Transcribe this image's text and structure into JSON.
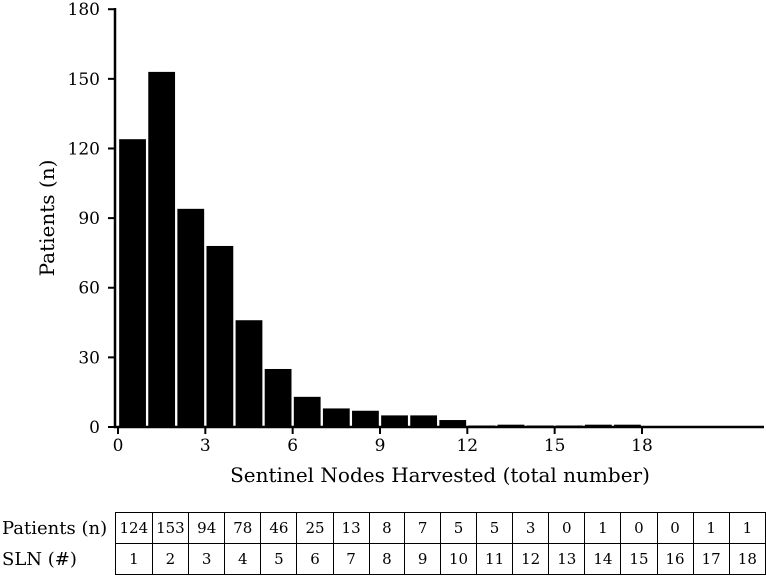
{
  "chart_data": {
    "type": "bar",
    "x": [
      1,
      2,
      3,
      4,
      5,
      6,
      7,
      8,
      9,
      10,
      11,
      12,
      13,
      14,
      15,
      16,
      17,
      18
    ],
    "values": [
      124,
      153,
      94,
      78,
      46,
      25,
      13,
      8,
      7,
      5,
      5,
      3,
      0,
      1,
      0,
      0,
      1,
      1
    ],
    "xlabel": "Sentinel Nodes Harvested (total number)",
    "ylabel": "Patients (n)",
    "xlim": [
      0,
      18.6
    ],
    "ylim": [
      0,
      180
    ],
    "xticks": [
      "0",
      "3",
      "6",
      "9",
      "12",
      "15",
      "18"
    ],
    "yticks": [
      "0",
      "30",
      "60",
      "90",
      "120",
      "150",
      "180"
    ],
    "bar_color": "#000000",
    "grid": false
  },
  "table": {
    "rows": [
      {
        "label": "Patients (n)",
        "cells": [
          "124",
          "153",
          "94",
          "78",
          "46",
          "25",
          "13",
          "8",
          "7",
          "5",
          "5",
          "3",
          "0",
          "1",
          "0",
          "0",
          "1",
          "1"
        ]
      },
      {
        "label": "SLN (#)",
        "cells": [
          "1",
          "2",
          "3",
          "4",
          "5",
          "6",
          "7",
          "8",
          "9",
          "10",
          "11",
          "12",
          "13",
          "14",
          "15",
          "16",
          "17",
          "18"
        ]
      }
    ]
  }
}
